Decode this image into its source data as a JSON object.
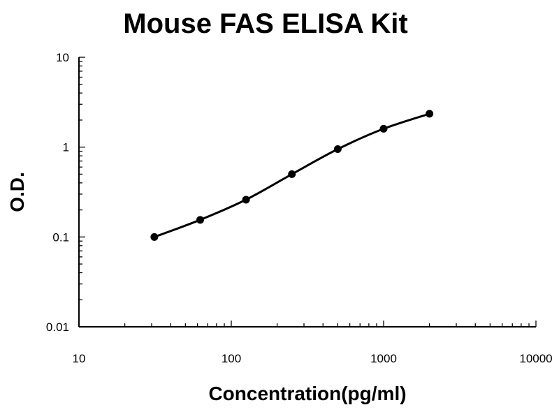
{
  "chart_data": {
    "type": "scatter",
    "title": "Mouse FAS ELISA Kit",
    "xlabel": "Concentration(pg/ml)",
    "ylabel": "O.D.",
    "x_scale": "log",
    "y_scale": "log",
    "xlim": [
      10,
      10000
    ],
    "ylim": [
      0.01,
      10
    ],
    "x_ticks": [
      "10",
      "100",
      "1000",
      "10000"
    ],
    "y_ticks": [
      "0.01",
      "0.1",
      "1",
      "10"
    ],
    "grid": false,
    "legend": "none",
    "series": [
      {
        "x": [
          31.25,
          62.5,
          125,
          250,
          500,
          1000,
          2000
        ],
        "y": [
          0.1,
          0.155,
          0.26,
          0.5,
          0.95,
          1.6,
          2.35
        ],
        "color": "#000000",
        "fit_curve": true
      }
    ]
  }
}
